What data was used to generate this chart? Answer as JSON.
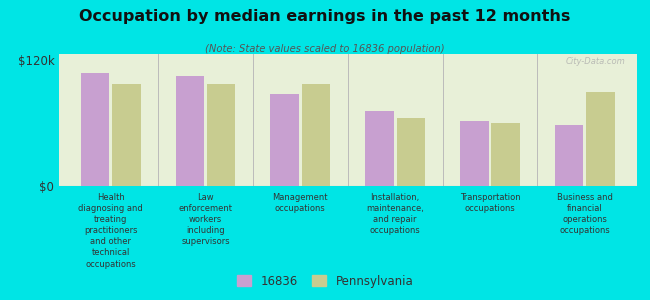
{
  "title": "Occupation by median earnings in the past 12 months",
  "subtitle": "(Note: State values scaled to 16836 population)",
  "categories": [
    "Health\ndiagnosing and\ntreating\npractitioners\nand other\ntechnical\noccupations",
    "Law\nenforcement\nworkers\nincluding\nsupervisors",
    "Management\noccupations",
    "Installation,\nmaintenance,\nand repair\noccupations",
    "Transportation\noccupations",
    "Business and\nfinancial\noperations\noccupations"
  ],
  "values_16836": [
    108000,
    105000,
    88000,
    72000,
    62000,
    58000
  ],
  "values_pa": [
    97000,
    97000,
    97000,
    65000,
    60000,
    90000
  ],
  "color_16836": "#c8a0d0",
  "color_pa": "#c8cc90",
  "background_chart": "#e8f0d8",
  "background_fig": "#00e5e5",
  "ymax": 120000,
  "ytick_labels": [
    "$0",
    "$120k"
  ],
  "legend_16836": "16836",
  "legend_pa": "Pennsylvania",
  "watermark": "City-Data.com"
}
